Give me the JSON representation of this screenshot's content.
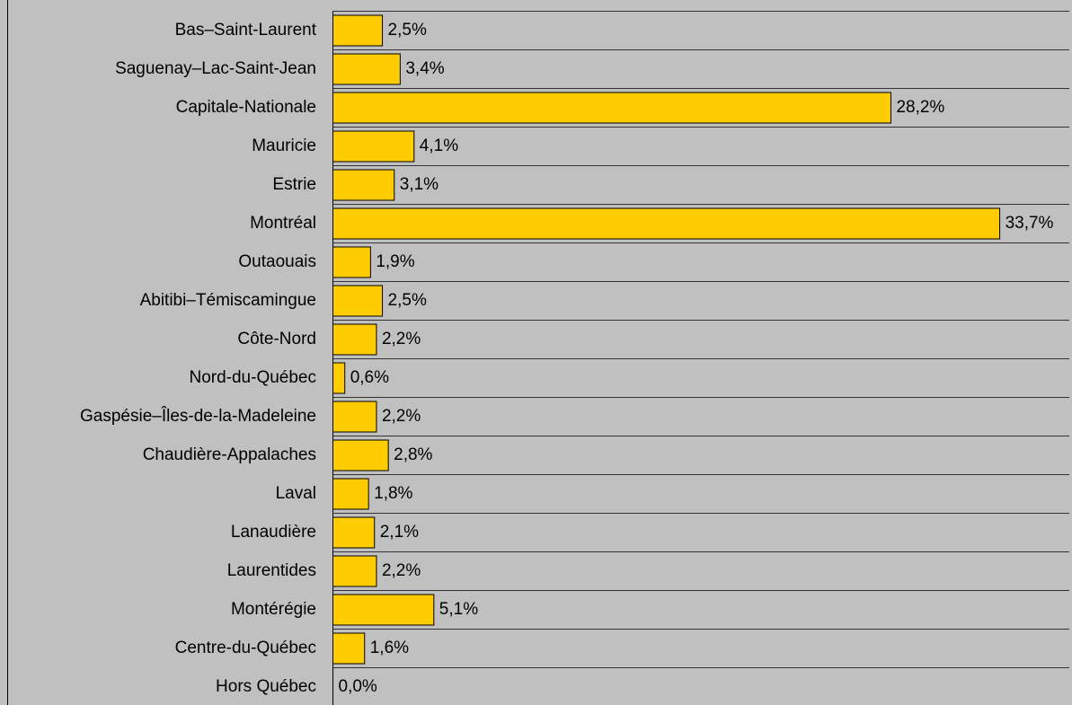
{
  "chart_data": {
    "type": "bar",
    "orientation": "horizontal",
    "color": "#ffcc00",
    "categories": [
      "Bas–Saint-Laurent",
      "Saguenay–Lac-Saint-Jean",
      "Capitale-Nationale",
      "Mauricie",
      "Estrie",
      "Montréal",
      "Outaouais",
      "Abitibi–Témiscamingue",
      "Côte-Nord",
      "Nord-du-Québec",
      "Gaspésie–Îles-de-la-Madeleine",
      "Chaudière-Appalaches",
      "Laval",
      "Lanaudière",
      "Laurentides",
      "Montérégie",
      "Centre-du-Québec",
      "Hors Québec"
    ],
    "values": [
      2.5,
      3.4,
      28.2,
      4.1,
      3.1,
      33.7,
      1.9,
      2.5,
      2.2,
      0.6,
      2.2,
      2.8,
      1.8,
      2.1,
      2.2,
      5.1,
      1.6,
      0.0
    ],
    "value_labels": [
      "2,5%",
      "3,4%",
      "28,2%",
      "4,1%",
      "3,1%",
      "33,7%",
      "1,9%",
      "2,5%",
      "2,2%",
      "0,6%",
      "2,2%",
      "2,8%",
      "1,8%",
      "2,1%",
      "2,2%",
      "5,1%",
      "1,6%",
      "0,0%"
    ]
  }
}
